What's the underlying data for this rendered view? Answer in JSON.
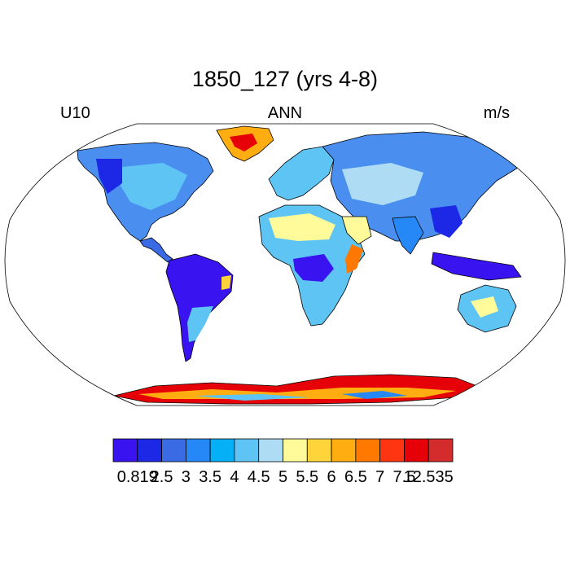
{
  "title": "1850_127 (yrs 4-8)",
  "left_string": "U10",
  "center_string": "ANN",
  "right_string": "m/s",
  "colorbar": {
    "colors": [
      "#3a14f0",
      "#1c28e6",
      "#3a6ae4",
      "#2588f6",
      "#06b0f6",
      "#5ec4f4",
      "#aedcf4",
      "#fffa9a",
      "#ffd43a",
      "#ffad10",
      "#ff7800",
      "#ff3410",
      "#e60008",
      "#d42c2c"
    ],
    "labels": [
      "0.819",
      "2.5",
      "3",
      "3.5",
      "4",
      "4.5",
      "5",
      "5.5",
      "6",
      "6.5",
      "7",
      "7.5",
      "12.535"
    ]
  },
  "map": {
    "projection": "robinson",
    "ocean_color": "#ffffff",
    "coastline_color": "#000000",
    "field_name": "U10",
    "regions": [
      {
        "name": "greenland",
        "class": "high"
      },
      {
        "name": "antarctica",
        "class": "very-high"
      },
      {
        "name": "amazon",
        "class": "low"
      },
      {
        "name": "congo",
        "class": "low"
      },
      {
        "name": "indonesia",
        "class": "low"
      },
      {
        "name": "somalia",
        "class": "high"
      }
    ]
  }
}
